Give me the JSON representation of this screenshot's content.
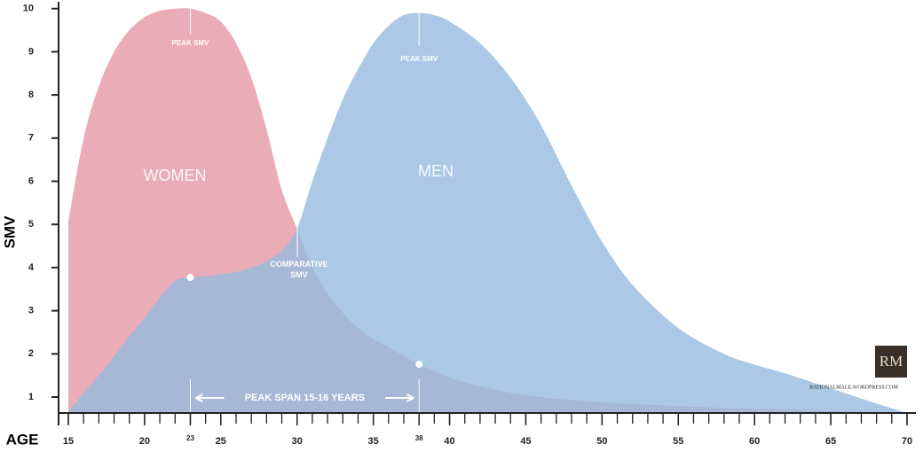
{
  "chart_data": {
    "type": "area",
    "x_label": "AGE",
    "y_label": "SMV",
    "x": [
      15,
      16,
      17,
      18,
      19,
      20,
      21,
      22,
      23,
      24,
      25,
      26,
      27,
      28,
      29,
      30,
      31,
      32,
      33,
      34,
      35,
      36,
      37,
      38,
      39,
      40,
      42,
      44,
      46,
      48,
      50,
      52,
      55,
      58,
      60,
      62,
      65,
      68,
      70
    ],
    "series": [
      {
        "name": "WOMEN",
        "color": "#e9a9b4",
        "values": [
          5.07,
          7.0,
          8.2,
          9.0,
          9.5,
          9.8,
          9.95,
          10,
          10,
          9.9,
          9.7,
          9.2,
          8.4,
          7.2,
          5.8,
          4.9,
          4.0,
          3.4,
          2.95,
          2.6,
          2.35,
          2.15,
          1.95,
          1.76,
          1.6,
          1.45,
          1.25,
          1.1,
          1.0,
          0.93,
          0.88,
          0.84,
          0.79,
          0.75,
          0.72,
          0.7,
          0.68,
          0.66,
          0.65
        ]
      },
      {
        "name": "MEN",
        "color": "#94badf",
        "values": [
          0.65,
          1.1,
          1.5,
          1.95,
          2.4,
          2.85,
          3.3,
          3.7,
          3.77,
          3.8,
          3.85,
          3.9,
          4.0,
          4.15,
          4.4,
          4.9,
          6.0,
          7.0,
          7.9,
          8.6,
          9.2,
          9.6,
          9.85,
          9.9,
          9.85,
          9.7,
          9.2,
          8.4,
          7.3,
          5.9,
          4.6,
          3.6,
          2.6,
          2.0,
          1.75,
          1.55,
          1.2,
          0.85,
          0.63
        ]
      }
    ],
    "xlim": [
      15,
      70
    ],
    "xticks": [
      15,
      20,
      23,
      25,
      30,
      35,
      38,
      40,
      45,
      50,
      55,
      60,
      65,
      70
    ],
    "ylim": [
      0.63,
      10.2
    ],
    "yticks": [
      1,
      2,
      3,
      4,
      5,
      6,
      7,
      8,
      9,
      10
    ],
    "annotations": {
      "peak_women": "PEAK SMV",
      "peak_men": "PEAK SMV",
      "comparative": "COMPARATIVE SMV",
      "span": "PEAK SPAN 15-16 YEARS"
    },
    "logo": "RM",
    "source": "RATIONALMALE.WORDPRESS.COM"
  }
}
